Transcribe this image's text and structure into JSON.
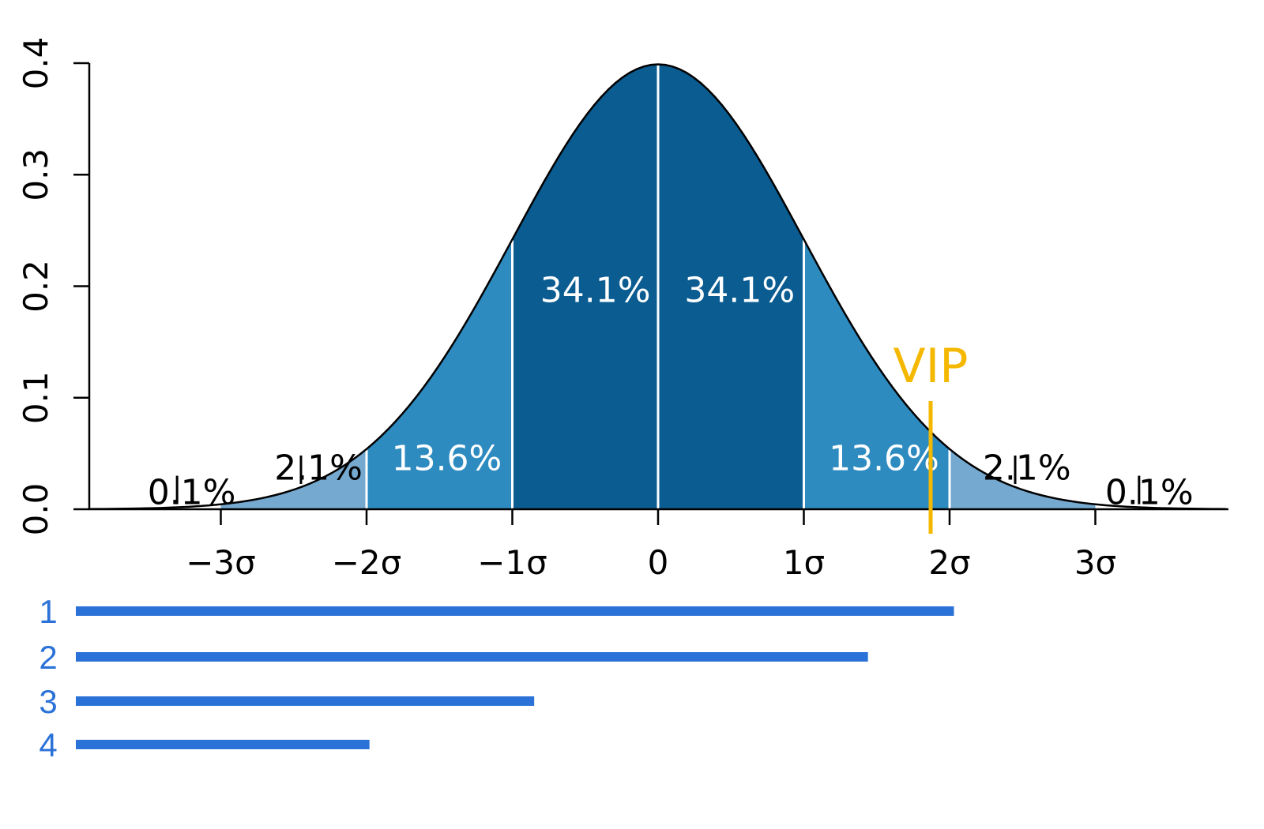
{
  "chart_data": {
    "type": "area",
    "title": "",
    "xlabel": "",
    "ylabel": "",
    "curve": "standard normal density",
    "xlim": [
      -4,
      4
    ],
    "ylim": [
      0,
      0.4
    ],
    "x_ticks": [
      {
        "value": -3,
        "label": "−3σ"
      },
      {
        "value": -2,
        "label": "−2σ"
      },
      {
        "value": -1,
        "label": "−1σ"
      },
      {
        "value": 0,
        "label": "0"
      },
      {
        "value": 1,
        "label": "1σ"
      },
      {
        "value": 2,
        "label": "2σ"
      },
      {
        "value": 3,
        "label": "3σ"
      }
    ],
    "y_ticks": [
      {
        "value": 0.0,
        "label": "0.0"
      },
      {
        "value": 0.1,
        "label": "0.1"
      },
      {
        "value": 0.2,
        "label": "0.2"
      },
      {
        "value": 0.3,
        "label": "0.3"
      },
      {
        "value": 0.4,
        "label": "0.4"
      }
    ],
    "bands": [
      {
        "from": -3,
        "to": -2,
        "color": "#75a9d0"
      },
      {
        "from": -2,
        "to": -1,
        "color": "#2e8bc0"
      },
      {
        "from": -1,
        "to": 0,
        "color": "#0a5c91"
      },
      {
        "from": 0,
        "to": 1,
        "color": "#0a5c91"
      },
      {
        "from": 1,
        "to": 2,
        "color": "#2e8bc0"
      },
      {
        "from": 2,
        "to": 3,
        "color": "#75a9d0"
      }
    ],
    "band_lines": [
      -2,
      -1,
      0,
      1,
      2
    ],
    "region_labels": [
      {
        "text": "34.1%",
        "x": -0.43,
        "y": 0.186,
        "style": "light"
      },
      {
        "text": "34.1%",
        "x": 0.56,
        "y": 0.186,
        "style": "light"
      },
      {
        "text": "13.6%",
        "x": -1.45,
        "y": 0.035,
        "style": "light"
      },
      {
        "text": "13.6%",
        "x": 1.55,
        "y": 0.035,
        "style": "light"
      }
    ],
    "tail_labels": [
      {
        "text": "0.1%",
        "marker_x": -3.3,
        "x": -3.2,
        "y": 0.033
      },
      {
        "text": "2.1%",
        "marker_x": -2.45,
        "x": -2.33,
        "y": 0.055
      },
      {
        "text": "2.1%",
        "marker_x": 2.45,
        "x": 2.53,
        "y": 0.055
      },
      {
        "text": "0.1%",
        "marker_x": 3.3,
        "x": 3.37,
        "y": 0.033
      }
    ],
    "marker": {
      "label": "VIP",
      "x": 1.87,
      "color": "#f5b800"
    },
    "rank_bars": [
      {
        "label": "1",
        "end_x": 2.03
      },
      {
        "label": "2",
        "end_x": 1.44
      },
      {
        "label": "3",
        "end_x": -0.85
      },
      {
        "label": "4",
        "end_x": -1.98
      }
    ],
    "colors": {
      "dark": "#0a5c91",
      "mid": "#2e8bc0",
      "light": "#75a9d0",
      "rank_bar": "#2b72d8",
      "vip": "#f5b800"
    }
  }
}
